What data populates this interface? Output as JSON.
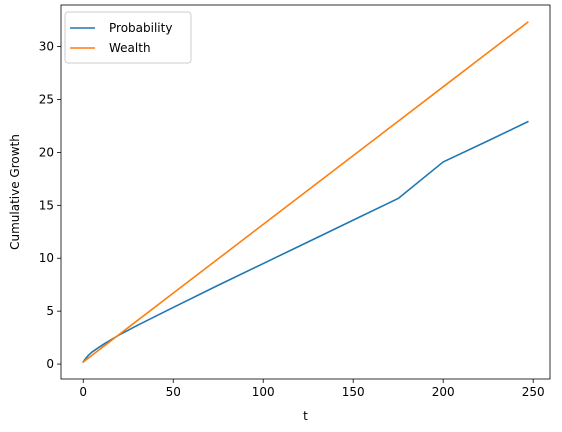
{
  "chart_data": {
    "type": "line",
    "title": "",
    "xlabel": "t",
    "ylabel": "Cumulative Growth",
    "xlim": [
      -12.35,
      259.35
    ],
    "ylim": [
      -1.41,
      33.93
    ],
    "xticks": [
      0,
      50,
      100,
      150,
      200,
      250
    ],
    "yticks": [
      0,
      5,
      10,
      15,
      20,
      25,
      30
    ],
    "grid": false,
    "legend": "top-left",
    "series": [
      {
        "name": "Probability",
        "color": "#1f77b4",
        "x": [
          0,
          1,
          2,
          3,
          5,
          8,
          12,
          16,
          20,
          25,
          30,
          40,
          50,
          75,
          100,
          125,
          150,
          175,
          200,
          225,
          247
        ],
        "y": [
          0.2,
          0.45,
          0.65,
          0.85,
          1.15,
          1.5,
          1.95,
          2.35,
          2.75,
          3.2,
          3.65,
          4.5,
          5.35,
          7.45,
          9.5,
          11.55,
          13.6,
          15.65,
          19.1,
          21.1,
          22.9
        ]
      },
      {
        "name": "Wealth",
        "color": "#ff7f0e",
        "x": [
          0,
          25,
          50,
          75,
          100,
          125,
          150,
          175,
          200,
          225,
          247
        ],
        "y": [
          0.2,
          3.45,
          6.7,
          9.95,
          13.2,
          16.45,
          19.7,
          22.95,
          26.2,
          29.45,
          32.3
        ]
      }
    ]
  }
}
